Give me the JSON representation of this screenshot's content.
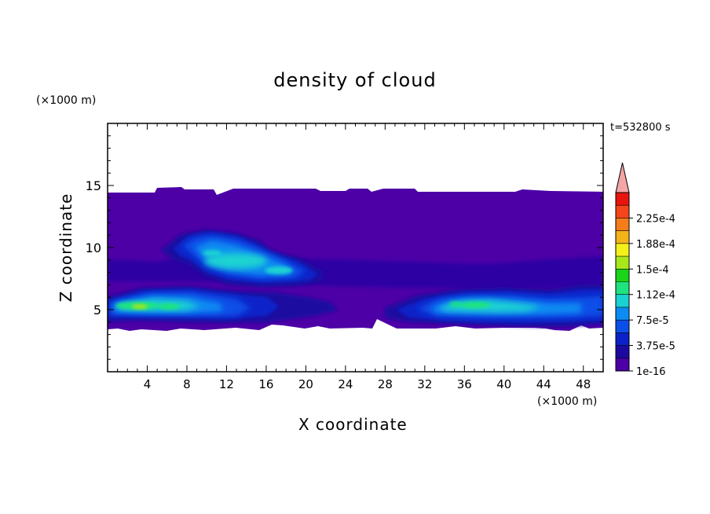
{
  "chart_data": {
    "type": "heatmap",
    "title": "density of cloud",
    "xlabel": "X coordinate",
    "ylabel": "Z coordinate",
    "x_unit": "(×1000 m)",
    "y_unit": "(×1000 m)",
    "time_label": "t=532800 s",
    "xlim": [
      0,
      50
    ],
    "ylim": [
      0,
      20
    ],
    "xticks": [
      4,
      8,
      12,
      16,
      20,
      24,
      28,
      32,
      36,
      40,
      44,
      48
    ],
    "yticks": [
      5,
      10,
      15
    ],
    "colorbar": {
      "labels": [
        "1e-16",
        "3.75e-5",
        "7.5e-5",
        "1.12e-4",
        "1.5e-4",
        "1.88e-4",
        "2.25e-4"
      ],
      "label_levels": [
        0,
        2,
        4,
        6,
        8,
        10,
        12
      ],
      "colors": [
        "#4c00a6",
        "#1c0aa0",
        "#0a22c8",
        "#0a50e8",
        "#0a8cf2",
        "#1ad2d2",
        "#1fe37f",
        "#19d419",
        "#a8e81a",
        "#f4f01a",
        "#f4b31a",
        "#f47d1a",
        "#f4461a",
        "#e8140f"
      ],
      "overflow_color": "#f4a6a6"
    },
    "regions": [
      {
        "desc": "background cloud layer",
        "x": [
          0,
          50
        ],
        "z": [
          3.5,
          14.5
        ],
        "level": 0
      },
      {
        "desc": "left low-level cloud band",
        "x": [
          0,
          20
        ],
        "z": [
          4,
          6.5
        ],
        "peak": 0.00015
      },
      {
        "desc": "mid-level cloud",
        "x": [
          6,
          22
        ],
        "z": [
          7.5,
          11
        ],
        "peak": 0.000112
      },
      {
        "desc": "right low-level cloud band",
        "x": [
          27,
          50
        ],
        "z": [
          4,
          6.5
        ],
        "peak": 0.00015
      }
    ]
  }
}
